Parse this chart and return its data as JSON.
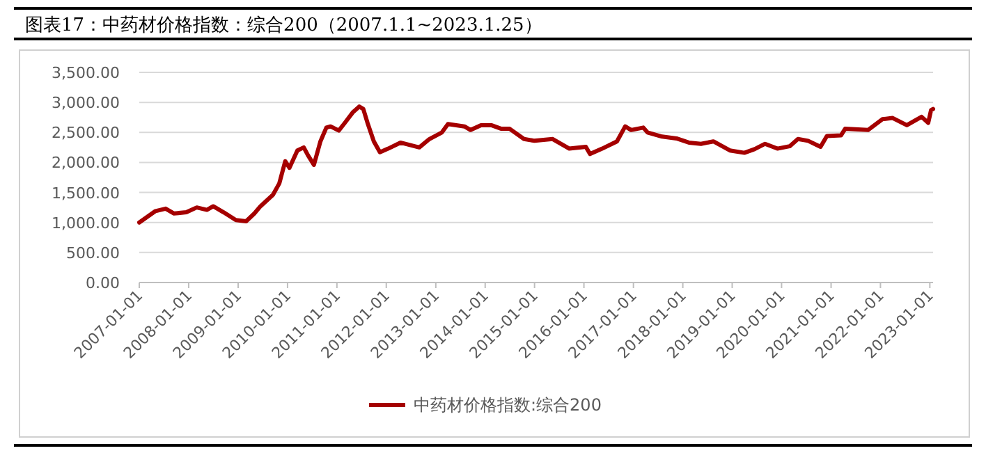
{
  "chart_data": {
    "type": "line",
    "title": "图表17：中药材价格指数：综合200（2007.1.1~2023.1.25）",
    "x": [
      "2007-01-01",
      "2007-05-01",
      "2007-07-15",
      "2007-09-15",
      "2007-12-15",
      "2008-03-01",
      "2008-05-15",
      "2008-07-01",
      "2008-09-15",
      "2008-12-15",
      "2009-03-01",
      "2009-05-01",
      "2009-06-15",
      "2009-09-15",
      "2009-11-01",
      "2009-12-15",
      "2010-01-15",
      "2010-03-15",
      "2010-05-01",
      "2010-06-01",
      "2010-07-15",
      "2010-09-01",
      "2010-10-15",
      "2010-11-15",
      "2011-01-15",
      "2011-03-01",
      "2011-05-01",
      "2011-06-15",
      "2011-07-15",
      "2011-08-15",
      "2011-10-01",
      "2011-11-15",
      "2012-01-15",
      "2012-04-15",
      "2012-09-01",
      "2012-11-15",
      "2013-02-15",
      "2013-04-01",
      "2013-08-01",
      "2013-09-15",
      "2013-12-01",
      "2014-02-15",
      "2014-05-01",
      "2014-07-01",
      "2014-10-15",
      "2015-01-01",
      "2015-05-15",
      "2015-09-15",
      "2016-01-15",
      "2016-02-15",
      "2016-05-15",
      "2016-09-01",
      "2016-11-01",
      "2016-12-15",
      "2017-03-15",
      "2017-04-15",
      "2017-08-01",
      "2017-11-15",
      "2018-02-15",
      "2018-05-15",
      "2018-08-15",
      "2018-12-15",
      "2019-04-01",
      "2019-06-15",
      "2019-09-01",
      "2019-12-01",
      "2020-03-01",
      "2020-05-01",
      "2020-07-15",
      "2020-10-15",
      "2020-12-01",
      "2021-03-15",
      "2021-04-15",
      "2021-10-01",
      "2022-01-15",
      "2022-04-01",
      "2022-07-15",
      "2022-11-01",
      "2022-12-20",
      "2023-01-10",
      "2023-01-25"
    ],
    "series": [
      {
        "name": "中药材价格指数:综合200",
        "color": "#a50000",
        "values": [
          1000,
          1190,
          1230,
          1150,
          1170,
          1250,
          1210,
          1270,
          1170,
          1040,
          1020,
          1150,
          1270,
          1460,
          1650,
          2020,
          1910,
          2200,
          2250,
          2120,
          1960,
          2350,
          2580,
          2600,
          2530,
          2660,
          2840,
          2930,
          2890,
          2660,
          2350,
          2170,
          2230,
          2330,
          2250,
          2390,
          2500,
          2640,
          2600,
          2540,
          2620,
          2620,
          2560,
          2560,
          2390,
          2360,
          2390,
          2230,
          2260,
          2140,
          2230,
          2350,
          2600,
          2540,
          2580,
          2500,
          2430,
          2400,
          2330,
          2310,
          2350,
          2200,
          2160,
          2220,
          2310,
          2230,
          2270,
          2390,
          2360,
          2260,
          2440,
          2450,
          2560,
          2540,
          2720,
          2740,
          2620,
          2760,
          2660,
          2870,
          2890
        ]
      }
    ],
    "xlim": [
      "2007-01-01",
      "2023-01-25"
    ],
    "xticks": [
      "2007-01-01",
      "2008-01-01",
      "2009-01-01",
      "2010-01-01",
      "2011-01-01",
      "2012-01-01",
      "2013-01-01",
      "2014-01-01",
      "2015-01-01",
      "2016-01-01",
      "2017-01-01",
      "2018-01-01",
      "2019-01-01",
      "2020-01-01",
      "2021-01-01",
      "2022-01-01",
      "2023-01-01"
    ],
    "ylim": [
      0,
      3500
    ],
    "yticks": [
      {
        "value": 0,
        "label": "0.00"
      },
      {
        "value": 500,
        "label": "500.00"
      },
      {
        "value": 1000,
        "label": "1,000.00"
      },
      {
        "value": 1500,
        "label": "1,500.00"
      },
      {
        "value": 2000,
        "label": "2,000.00"
      },
      {
        "value": 2500,
        "label": "2,500.00"
      },
      {
        "value": 3000,
        "label": "3,000.00"
      },
      {
        "value": 3500,
        "label": "3,500.00"
      }
    ],
    "grid": "y",
    "legend": "bottom",
    "marker": "none",
    "line_style": "solid"
  }
}
